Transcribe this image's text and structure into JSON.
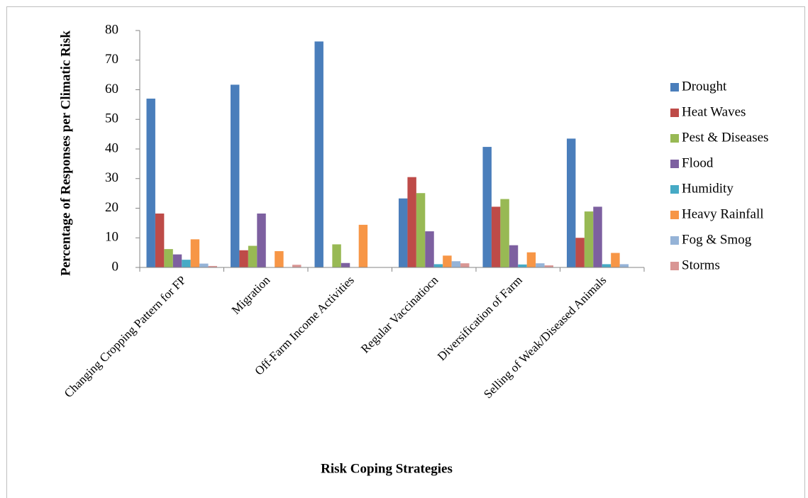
{
  "chart_data": {
    "type": "bar",
    "y_label": "Percentage of Responses per Climatic Risk",
    "x_label": "Risk Coping Strategies",
    "categories": [
      "Changing Cropping Pattern for FP",
      "Migration",
      "Off-Farm Income Activities",
      "Regular Vaccinatiocn",
      "Diversification of Farm",
      "Selling of Weak/Diseased Animals"
    ],
    "series": [
      {
        "name": "Drought",
        "color": "#4a7ebb",
        "values": [
          57,
          61.7,
          76.3,
          23.3,
          40.7,
          43.5
        ]
      },
      {
        "name": "Heat Waves",
        "color": "#be4b48",
        "values": [
          18.2,
          5.8,
          0,
          30.5,
          20.5,
          10
        ]
      },
      {
        "name": "Pest & Diseases",
        "color": "#98b954",
        "values": [
          6.2,
          7.3,
          7.8,
          25.1,
          23.1,
          18.9
        ]
      },
      {
        "name": "Flood",
        "color": "#7d60a0",
        "values": [
          4.4,
          18.2,
          1.5,
          12.2,
          7.5,
          20.5
        ]
      },
      {
        "name": "Humidity",
        "color": "#46aac5",
        "values": [
          2.6,
          0,
          0,
          1.1,
          1,
          1.1
        ]
      },
      {
        "name": "Heavy Rainfall",
        "color": "#f79646",
        "values": [
          9.5,
          5.5,
          14.4,
          4,
          5.1,
          4.9
        ]
      },
      {
        "name": "Fog & Smog",
        "color": "#95b3d7",
        "values": [
          1.3,
          0,
          0,
          2.1,
          1.4,
          1.1
        ]
      },
      {
        "name": "Storms",
        "color": "#d99694",
        "values": [
          0.5,
          0.9,
          0,
          1.4,
          0.7,
          0
        ]
      }
    ],
    "ylim": [
      0,
      80
    ],
    "yticks": [
      0,
      10,
      20,
      30,
      40,
      50,
      60,
      70,
      80
    ],
    "legend": "right",
    "grid": false
  }
}
